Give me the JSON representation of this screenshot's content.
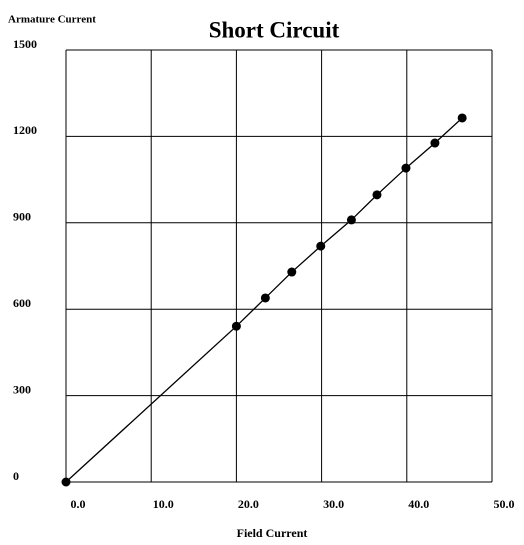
{
  "chart_data": {
    "type": "scatter",
    "title": "Short Circuit",
    "y_label": "Armature Current",
    "x_label": "Field Current",
    "x": [
      0,
      20.0,
      23.4,
      26.5,
      29.9,
      33.5,
      36.5,
      39.9,
      43.3,
      46.5
    ],
    "series": [
      {
        "name": "Short Circuit",
        "color": "#000000",
        "values": [
          0,
          541,
          639,
          729,
          819,
          910,
          997,
          1090,
          1177,
          1264
        ]
      }
    ],
    "xlim": [
      0,
      50
    ],
    "ylim": [
      0,
      1500
    ],
    "xticks": [
      {
        "value": 0,
        "label": "0.0"
      },
      {
        "value": 10,
        "label": "10.0"
      },
      {
        "value": 20,
        "label": "20.0"
      },
      {
        "value": 30,
        "label": "30.0"
      },
      {
        "value": 40,
        "label": "40.0"
      },
      {
        "value": 50,
        "label": "50.0"
      }
    ],
    "yticks": [
      0,
      300,
      600,
      900,
      1200,
      1500
    ],
    "grid": true
  }
}
